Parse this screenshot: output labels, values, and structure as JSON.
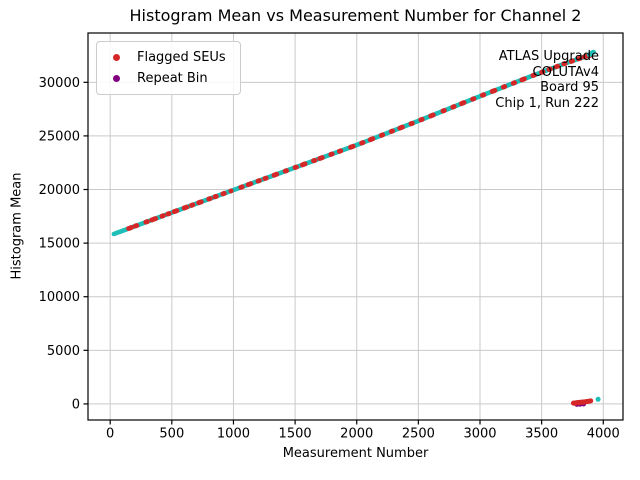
{
  "title": "Histogram Mean vs Measurement Number for Channel 2",
  "axes": {
    "xlabel": "Measurement Number",
    "ylabel": "Histogram Mean"
  },
  "legend": {
    "items": [
      {
        "label": "Flagged SEUs",
        "color": "#d62728"
      },
      {
        "label": "Repeat Bin",
        "color": "#800080"
      }
    ]
  },
  "annotation": {
    "lines": [
      "ATLAS Upgrade",
      "COLUTAv4",
      "Board 95",
      "Chip 1, Run 222"
    ]
  },
  "colors": {
    "main_series": "#1fbfb8",
    "flagged": "#d62728",
    "repeat": "#800080",
    "grid": "#c9c9c9",
    "spine": "#000000"
  },
  "chart_data": {
    "type": "scatter",
    "title": "Histogram Mean vs Measurement Number for Channel 2",
    "xlabel": "Measurement Number",
    "ylabel": "Histogram Mean",
    "xlim": [
      -180,
      4160
    ],
    "ylim": [
      -1500,
      34600
    ],
    "xticks": [
      0,
      500,
      1000,
      1500,
      2000,
      2500,
      3000,
      3500,
      4000
    ],
    "yticks": [
      0,
      5000,
      10000,
      15000,
      20000,
      25000,
      30000
    ],
    "grid": true,
    "legend_position": "upper left",
    "series": [
      {
        "name": "Histogram Mean",
        "color": "#1fbfb8",
        "marker_radius": 2.3,
        "trend_anchors": [
          [
            30,
            15850
          ],
          [
            500,
            17850
          ],
          [
            1000,
            19950
          ],
          [
            1500,
            22050
          ],
          [
            2000,
            24150
          ],
          [
            2500,
            26400
          ],
          [
            3000,
            28700
          ],
          [
            3400,
            30500
          ],
          [
            3700,
            31800
          ],
          [
            3880,
            32500
          ]
        ],
        "x_start": 30,
        "x_end": 3872,
        "x_step": 8,
        "extra_points": [
          [
            3888,
            32570
          ],
          [
            3898,
            32650
          ],
          [
            3908,
            32730
          ],
          [
            3920,
            32810
          ],
          [
            3958,
            430
          ]
        ]
      },
      {
        "name": "Flagged SEUs",
        "color": "#d62728",
        "marker_radius": 2.5,
        "on_trend_x": [
          150,
          160,
          172,
          205,
          215,
          290,
          300,
          338,
          348,
          358,
          368,
          420,
          430,
          468,
          478,
          520,
          530,
          540,
          600,
          610,
          620,
          660,
          670,
          718,
          728,
          738,
          800,
          810,
          850,
          860,
          915,
          925,
          980,
          1060,
          1070,
          1120,
          1130,
          1140,
          1200,
          1210,
          1255,
          1265,
          1330,
          1340,
          1350,
          1420,
          1430,
          1500,
          1510,
          1560,
          1570,
          1580,
          1650,
          1660,
          1700,
          1710,
          1720,
          1790,
          1800,
          1860,
          1870,
          1950,
          1960,
          1970,
          2040,
          2050,
          2110,
          2120,
          2130,
          2200,
          2210,
          2280,
          2290,
          2350,
          2360,
          2370,
          2440,
          2450,
          2520,
          2530,
          2600,
          2610,
          2620,
          2700,
          2710,
          2780,
          2790,
          2850,
          2860,
          2870,
          2940,
          2950,
          3020,
          3030,
          3100,
          3110,
          3120,
          3190,
          3200,
          3270,
          3280,
          3340,
          3350,
          3360,
          3430,
          3440,
          3500,
          3510,
          3560,
          3570,
          3620,
          3630,
          3680,
          3690,
          3740,
          3750,
          3800,
          3810,
          3845,
          3855,
          3880,
          3892
        ],
        "points": [
          [
            3758,
            70
          ],
          [
            3768,
            85
          ],
          [
            3778,
            100
          ],
          [
            3788,
            120
          ],
          [
            3798,
            135
          ],
          [
            3808,
            148
          ],
          [
            3818,
            158
          ],
          [
            3828,
            168
          ],
          [
            3838,
            178
          ],
          [
            3848,
            190
          ],
          [
            3858,
            205
          ],
          [
            3868,
            220
          ],
          [
            3878,
            240
          ],
          [
            3888,
            262
          ],
          [
            3898,
            285
          ],
          [
            3772,
            45
          ],
          [
            3802,
            95
          ],
          [
            3832,
            130
          ]
        ]
      },
      {
        "name": "Repeat Bin",
        "color": "#800080",
        "marker_radius": 2.5,
        "points": [
          [
            3786,
            -45
          ],
          [
            3812,
            -25
          ],
          [
            3840,
            -8
          ]
        ]
      }
    ]
  }
}
